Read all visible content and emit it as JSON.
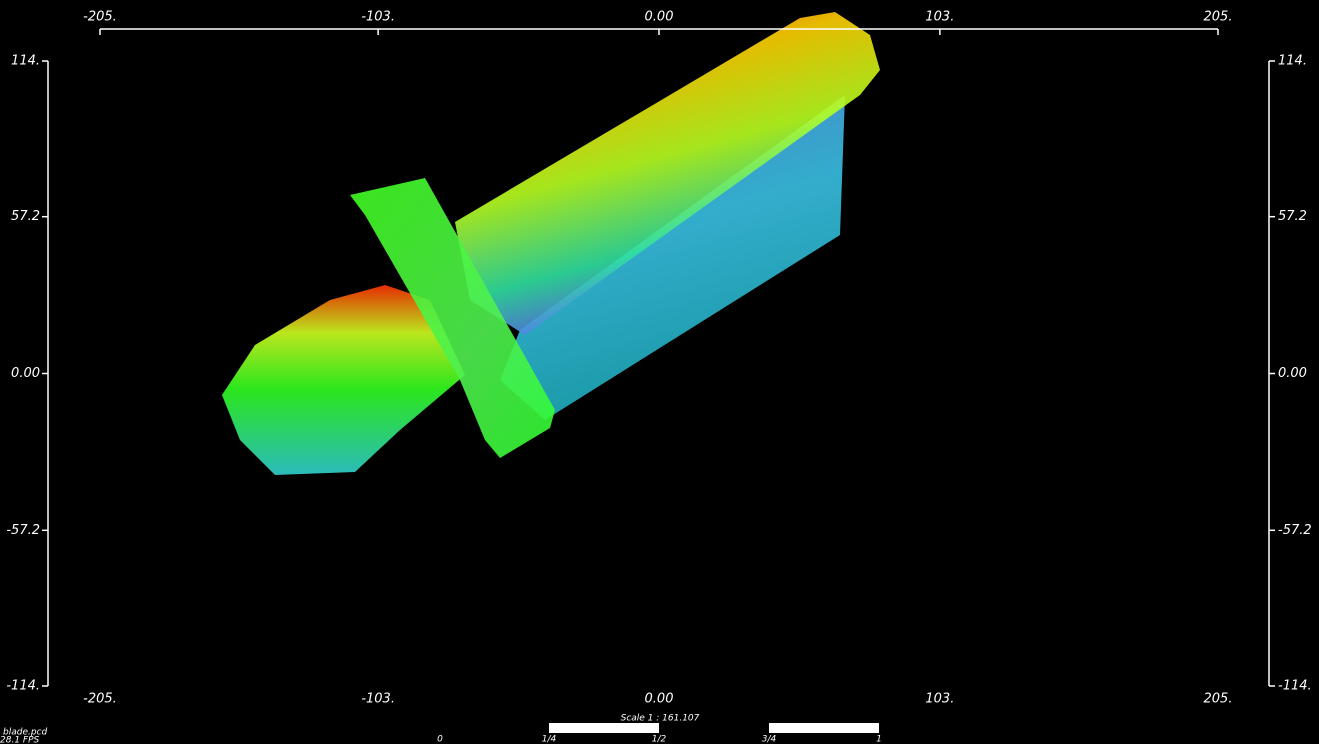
{
  "viewer": {
    "xlim": [
      -205,
      205
    ],
    "ylim": [
      -114,
      114
    ],
    "xticks": [
      {
        "value": -205,
        "label": "-205."
      },
      {
        "value": -103,
        "label": "-103."
      },
      {
        "value": 0,
        "label": "0.00"
      },
      {
        "value": 103,
        "label": "103."
      },
      {
        "value": 205,
        "label": "205."
      }
    ],
    "yticks": [
      {
        "value": 114,
        "label": "114."
      },
      57.2,
      {
        "value": 0,
        "label": "0.00"
      },
      -57.2,
      {
        "value": -114,
        "label": "-114."
      }
    ],
    "scale_label": "Scale 1 : 161.107",
    "scale_ticks": [
      "0",
      "1/4",
      "1/2",
      "3/4",
      "1"
    ],
    "filename": "blade.pcd",
    "fps": "28.1 FPS"
  }
}
